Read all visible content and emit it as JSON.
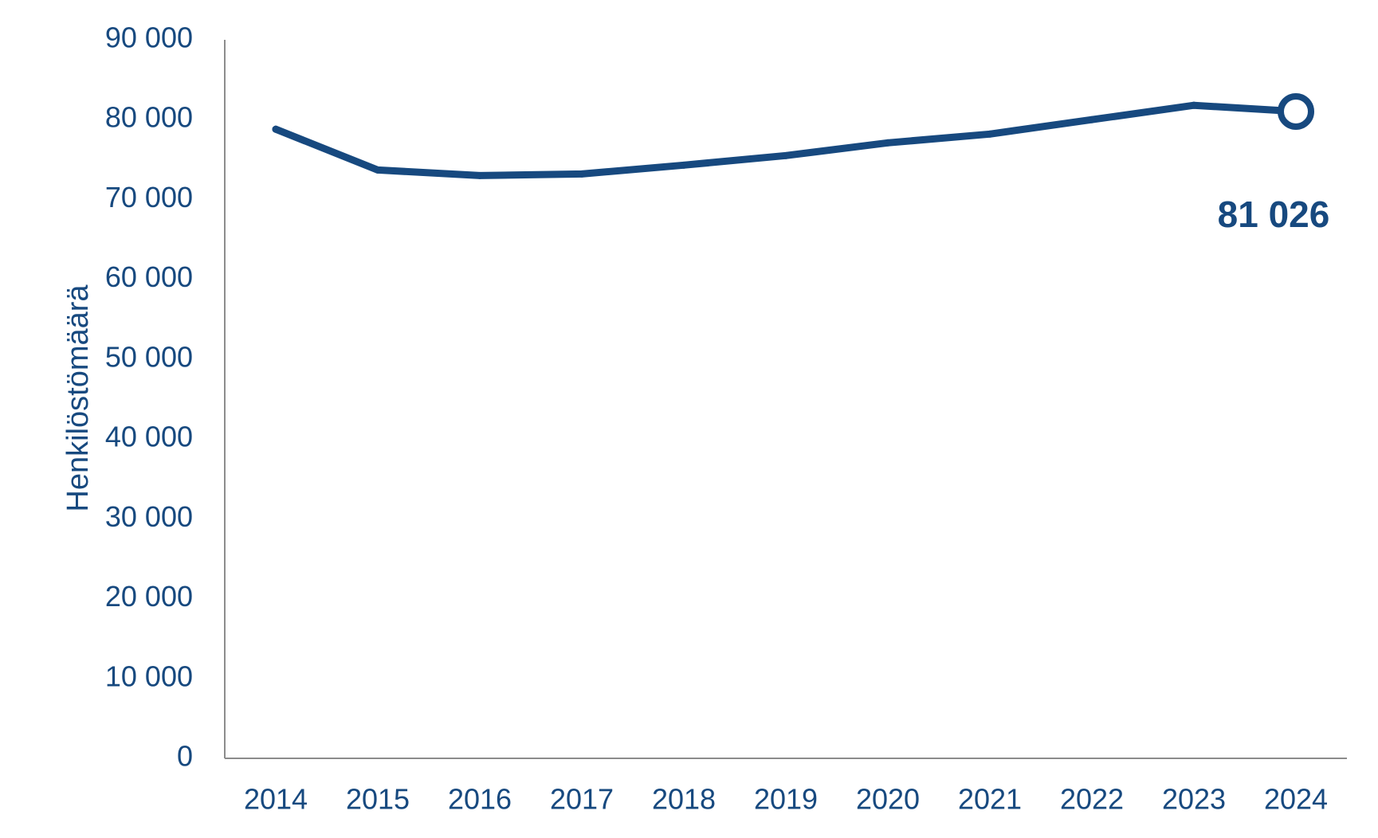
{
  "chart_data": {
    "type": "line",
    "title": "",
    "xlabel": "",
    "ylabel": "Henkilöstömäärä",
    "x": [
      "2014",
      "2015",
      "2016",
      "2017",
      "2018",
      "2019",
      "2020",
      "2021",
      "2022",
      "2023",
      "2024"
    ],
    "series": [
      {
        "name": "Henkilöstömäärä",
        "values": [
          78800,
          73700,
          73000,
          73200,
          74300,
          75500,
          77100,
          78200,
          80000,
          81800,
          81026
        ]
      }
    ],
    "ylim": [
      0,
      90000
    ],
    "yticks": [
      0,
      10000,
      20000,
      30000,
      40000,
      50000,
      60000,
      70000,
      80000,
      90000
    ],
    "ytick_labels": [
      "0",
      "10 000",
      "20 000",
      "30 000",
      "40 000",
      "50 000",
      "60 000",
      "70 000",
      "80 000",
      "90 000"
    ],
    "grid": false,
    "annotation": {
      "text": "81 026",
      "x": "2024"
    },
    "colors": {
      "line": "#17497f",
      "text": "#17497f",
      "axis": "#8c8c8c"
    }
  }
}
